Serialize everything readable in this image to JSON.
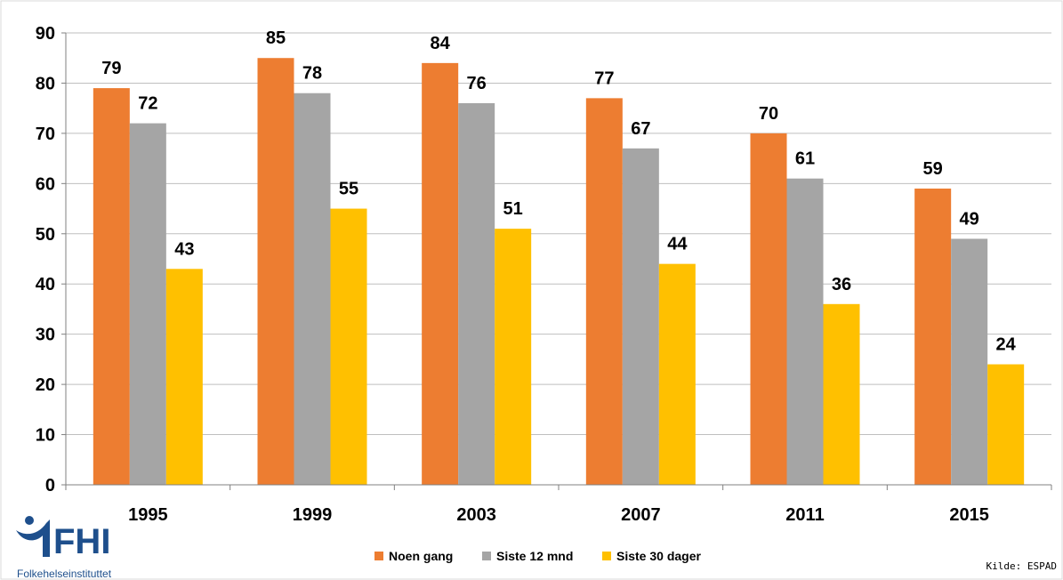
{
  "chart_data": {
    "type": "bar",
    "categories": [
      "1995",
      "1999",
      "2003",
      "2007",
      "2011",
      "2015"
    ],
    "series": [
      {
        "name": "Noen gang",
        "color": "#ed7d31",
        "values": [
          79,
          85,
          84,
          77,
          70,
          59
        ]
      },
      {
        "name": "Siste 12 mnd",
        "color": "#a5a5a5",
        "values": [
          72,
          78,
          76,
          67,
          61,
          49
        ]
      },
      {
        "name": "Siste 30 dager",
        "color": "#ffc000",
        "values": [
          43,
          55,
          51,
          44,
          36,
          24
        ]
      }
    ],
    "y_ticks": [
      0,
      10,
      20,
      30,
      40,
      50,
      60,
      70,
      80,
      90
    ],
    "ylim": [
      0,
      90
    ],
    "grid": true,
    "legend_position": "bottom-center",
    "data_labels": true
  },
  "logo": {
    "name": "FHI",
    "subtitle": "Folkehelseinstituttet"
  },
  "source_note": "Kilde: ESPAD",
  "colors": {
    "grid": "#bfbfbf",
    "axis": "#808080",
    "logo_blue": "#1e4f8c"
  }
}
